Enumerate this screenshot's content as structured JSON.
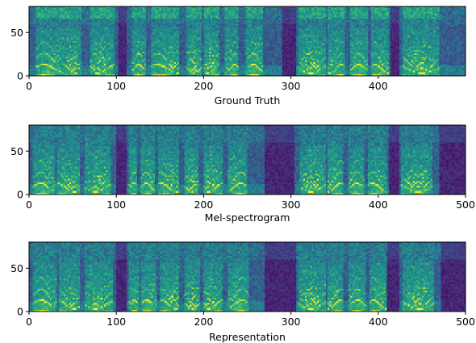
{
  "chart_data": [
    {
      "type": "heatmap",
      "title": "",
      "xlabel": "Ground Truth",
      "ylabel": "",
      "xlim": [
        0,
        500
      ],
      "ylim": [
        0,
        80
      ],
      "xticks": [
        0,
        100,
        200,
        300,
        400
      ],
      "yticks": [
        0,
        50
      ],
      "colormap": "viridis",
      "silence_regions": [
        [
          103,
          113
        ],
        [
          290,
          306
        ],
        [
          414,
          425
        ]
      ],
      "voiced_segments": [
        [
          8,
          40
        ],
        [
          40,
          60
        ],
        [
          70,
          98
        ],
        [
          118,
          134
        ],
        [
          140,
          172
        ],
        [
          180,
          198
        ],
        [
          200,
          218
        ],
        [
          225,
          240
        ],
        [
          248,
          268
        ],
        [
          308,
          340
        ],
        [
          343,
          362
        ],
        [
          368,
          388
        ],
        [
          392,
          412
        ],
        [
          428,
          470
        ]
      ]
    },
    {
      "type": "heatmap",
      "title": "",
      "xlabel": "Mel-spectrogram",
      "ylabel": "",
      "xlim": [
        0,
        500
      ],
      "ylim": [
        0,
        80
      ],
      "xticks": [
        0,
        100,
        200,
        300,
        400,
        500
      ],
      "yticks": [
        0,
        50
      ],
      "colormap": "viridis",
      "silence_regions": [
        [
          100,
          112
        ],
        [
          270,
          305
        ],
        [
          412,
          424
        ],
        [
          470,
          500
        ]
      ],
      "voiced_segments": [
        [
          5,
          30
        ],
        [
          32,
          58
        ],
        [
          65,
          95
        ],
        [
          115,
          125
        ],
        [
          128,
          145
        ],
        [
          148,
          172
        ],
        [
          178,
          195
        ],
        [
          200,
          222
        ],
        [
          228,
          250
        ],
        [
          310,
          340
        ],
        [
          342,
          360
        ],
        [
          366,
          385
        ],
        [
          388,
          410
        ],
        [
          426,
          462
        ]
      ]
    },
    {
      "type": "heatmap",
      "title": "",
      "xlabel": "Representation",
      "ylabel": "",
      "xlim": [
        0,
        500
      ],
      "ylim": [
        0,
        80
      ],
      "xticks": [
        0,
        100,
        200,
        300,
        400,
        500
      ],
      "yticks": [
        0,
        50
      ],
      "colormap": "viridis",
      "silence_regions": [
        [
          100,
          112
        ],
        [
          270,
          306
        ],
        [
          410,
          424
        ],
        [
          472,
          500
        ]
      ],
      "voiced_segments": [
        [
          5,
          32
        ],
        [
          34,
          58
        ],
        [
          64,
          96
        ],
        [
          115,
          126
        ],
        [
          128,
          146
        ],
        [
          150,
          172
        ],
        [
          178,
          196
        ],
        [
          200,
          222
        ],
        [
          228,
          252
        ],
        [
          308,
          340
        ],
        [
          342,
          360
        ],
        [
          366,
          386
        ],
        [
          390,
          410
        ],
        [
          428,
          465
        ]
      ]
    }
  ]
}
